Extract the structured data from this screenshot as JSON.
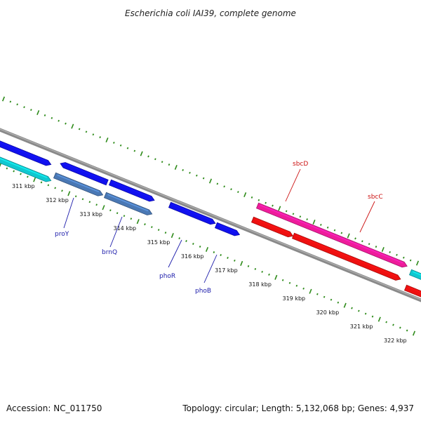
{
  "title": "Escherichia coli IAI39, complete genome",
  "footer": {
    "accession": "Accession: NC_011750",
    "summary": "Topology: circular; Length: 5,132,068 bp; Genes: 4,937"
  },
  "colors": {
    "backbone": "#8a8a8a",
    "tick": "#2e8b1a",
    "blue_gene": "#1010ee",
    "steel_gene": "#4a78b4",
    "cyan_gene": "#10c8d0",
    "magenta_gene": "#ee1c9a",
    "red_gene": "#ee1010",
    "blue_label": "#1a1aaa",
    "red_label": "#cc1111"
  },
  "kbp_labels": [
    "311 kbp",
    "312 kbp",
    "313 kbp",
    "314 kbp",
    "315 kbp",
    "316 kbp",
    "317 kbp",
    "318 kbp",
    "319 kbp",
    "320 kbp",
    "321 kbp",
    "322 kbp"
  ],
  "gene_labels": [
    {
      "text": "proY",
      "color": "blue"
    },
    {
      "text": "brnQ",
      "color": "blue"
    },
    {
      "text": "phoR",
      "color": "blue"
    },
    {
      "text": "phoB",
      "color": "blue"
    },
    {
      "text": "sbcD",
      "color": "red"
    },
    {
      "text": "sbcC",
      "color": "red"
    }
  ]
}
